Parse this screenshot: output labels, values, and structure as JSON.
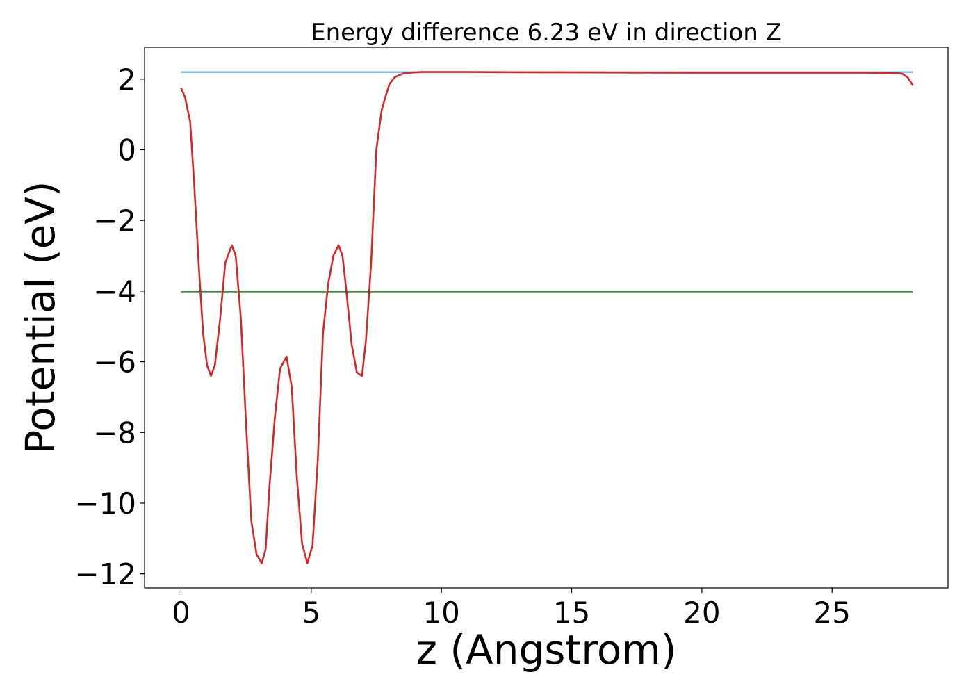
{
  "chart_data": {
    "type": "line",
    "title": "Energy difference 6.23 eV in direction Z",
    "xlabel": "z (Angstrom)",
    "ylabel": "Potential (eV)",
    "xlim": [
      -1.4,
      29.45
    ],
    "ylim": [
      -12.4,
      2.9
    ],
    "xticks": [
      0,
      5,
      10,
      15,
      20,
      25
    ],
    "xtick_labels": [
      "0",
      "5",
      "10",
      "15",
      "20",
      "25"
    ],
    "yticks": [
      2,
      0,
      -2,
      -4,
      -6,
      -8,
      -10,
      -12
    ],
    "ytick_labels": [
      "2",
      "0",
      "−2",
      "−4",
      "−6",
      "−8",
      "−10",
      "−12"
    ],
    "grid": false,
    "series": [
      {
        "color": "#1f77b4",
        "x": [
          0,
          28.1
        ],
        "y": [
          2.2,
          2.2
        ]
      },
      {
        "color": "#2ca02c",
        "x": [
          0,
          28.1
        ],
        "y": [
          -4.02,
          -4.02
        ]
      },
      {
        "color": "#d62728",
        "x": [
          0,
          0.15,
          0.35,
          0.5,
          0.7,
          0.85,
          1.0,
          1.15,
          1.3,
          1.5,
          1.7,
          1.95,
          2.1,
          2.3,
          2.5,
          2.7,
          2.9,
          3.1,
          3.25,
          3.4,
          3.6,
          3.8,
          4.05,
          4.25,
          4.45,
          4.65,
          4.85,
          5.05,
          5.25,
          5.45,
          5.65,
          5.85,
          6.05,
          6.2,
          6.35,
          6.55,
          6.75,
          6.95,
          7.1,
          7.3,
          7.5,
          7.7,
          7.85,
          8.0,
          8.2,
          8.5,
          8.8,
          9.2,
          9.8,
          11,
          15,
          20,
          25,
          26.5,
          27.3,
          27.7,
          27.9,
          28.1
        ],
        "y": [
          1.75,
          1.5,
          0.8,
          -0.9,
          -3.5,
          -5.2,
          -6.1,
          -6.4,
          -6.1,
          -4.8,
          -3.2,
          -2.7,
          -3.0,
          -4.8,
          -7.8,
          -10.5,
          -11.45,
          -11.7,
          -11.3,
          -9.5,
          -7.6,
          -6.2,
          -5.85,
          -6.7,
          -9.3,
          -11.15,
          -11.7,
          -11.2,
          -8.8,
          -5.2,
          -3.8,
          -3.0,
          -2.7,
          -3.0,
          -4.0,
          -5.5,
          -6.3,
          -6.4,
          -5.4,
          -3.2,
          0.0,
          1.1,
          1.5,
          1.85,
          2.05,
          2.15,
          2.18,
          2.2,
          2.2,
          2.2,
          2.19,
          2.18,
          2.18,
          2.18,
          2.17,
          2.15,
          2.05,
          1.82
        ]
      }
    ]
  }
}
